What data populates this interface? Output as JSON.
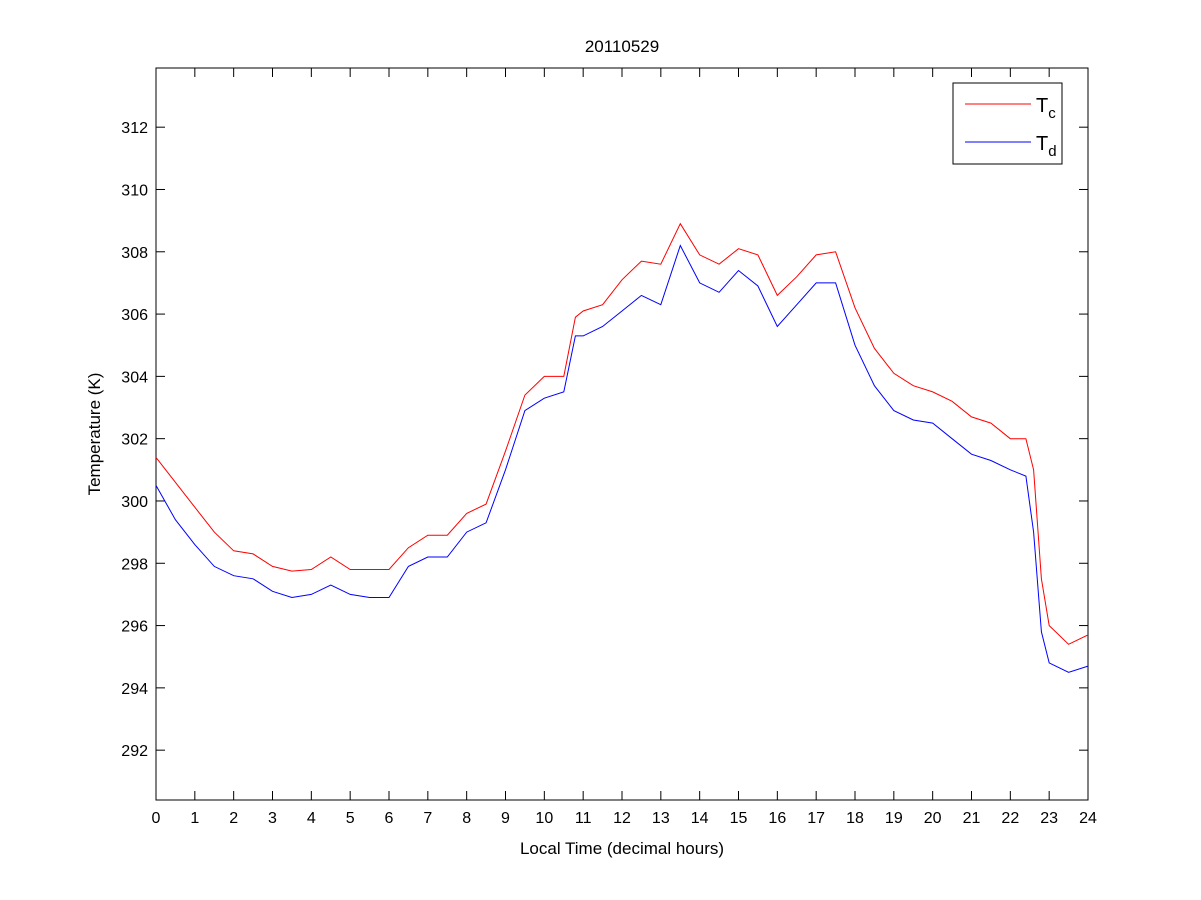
{
  "chart_data": {
    "type": "line",
    "title": "20110529",
    "xlabel": "Local Time (decimal hours)",
    "ylabel": "Temperature (K)",
    "xlim": [
      0,
      24
    ],
    "ylim": [
      290.4,
      313.9
    ],
    "xticks": [
      0,
      1,
      2,
      3,
      4,
      5,
      6,
      7,
      8,
      9,
      10,
      11,
      12,
      13,
      14,
      15,
      16,
      17,
      18,
      19,
      20,
      21,
      22,
      23,
      24
    ],
    "yticks": [
      292,
      294,
      296,
      298,
      300,
      302,
      304,
      306,
      308,
      310,
      312
    ],
    "grid": false,
    "legend_position": "top-right",
    "x": [
      0,
      0.5,
      1,
      1.5,
      2,
      2.5,
      3,
      3.5,
      4,
      4.5,
      5,
      5.5,
      6,
      6.5,
      7,
      7.5,
      8,
      8.5,
      9,
      9.5,
      10,
      10.5,
      10.8,
      11,
      11.5,
      12,
      12.5,
      13,
      13.5,
      14,
      14.5,
      15,
      15.5,
      16,
      16.5,
      17,
      17.5,
      18,
      18.5,
      19,
      19.5,
      20,
      20.5,
      21,
      21.5,
      22,
      22.4,
      22.6,
      22.8,
      23,
      23.5,
      24
    ],
    "series": [
      {
        "name": "T",
        "subscript": "c",
        "color": "#ff0000",
        "values": [
          301.4,
          300.6,
          299.8,
          299.0,
          298.4,
          298.3,
          297.9,
          297.75,
          297.8,
          298.2,
          297.8,
          297.8,
          297.8,
          298.5,
          298.9,
          298.9,
          299.6,
          299.9,
          301.6,
          303.4,
          304.0,
          304.0,
          305.9,
          306.1,
          306.3,
          307.1,
          307.7,
          307.6,
          308.9,
          307.9,
          307.6,
          308.1,
          307.9,
          306.6,
          307.2,
          307.9,
          308.0,
          306.2,
          304.9,
          304.1,
          303.7,
          303.5,
          303.2,
          302.7,
          302.5,
          302.0,
          302.0,
          301.0,
          297.5,
          296.0,
          295.4,
          295.7
        ]
      },
      {
        "name": "T",
        "subscript": "d",
        "color": "#0000ff",
        "values": [
          300.5,
          299.4,
          298.6,
          297.9,
          297.6,
          297.5,
          297.1,
          296.9,
          297.0,
          297.3,
          297.0,
          296.9,
          296.9,
          297.9,
          298.2,
          298.2,
          299.0,
          299.3,
          301.0,
          302.9,
          303.3,
          303.5,
          305.3,
          305.3,
          305.6,
          306.1,
          306.6,
          306.3,
          308.2,
          307.0,
          306.7,
          307.4,
          306.9,
          305.6,
          306.3,
          307.0,
          307.0,
          305.0,
          303.7,
          302.9,
          302.6,
          302.5,
          302.0,
          301.5,
          301.3,
          301.0,
          300.8,
          299.0,
          295.8,
          294.8,
          294.5,
          294.7
        ]
      }
    ]
  }
}
